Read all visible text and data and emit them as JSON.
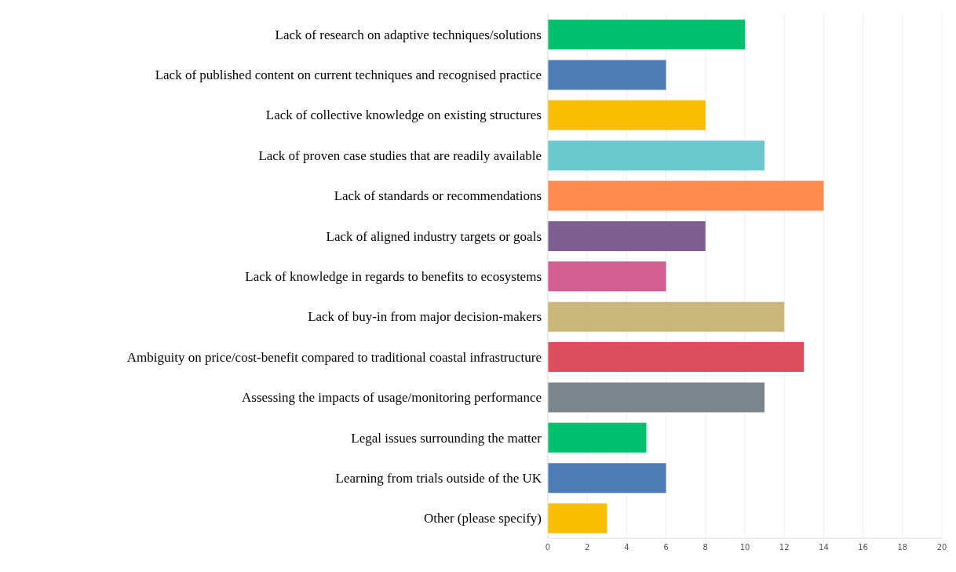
{
  "chart_data": {
    "type": "bar",
    "orientation": "horizontal",
    "categories": [
      "Lack of research on adaptive techniques/solutions",
      "Lack of published content on current techniques and recognised practice",
      "Lack of collective knowledge on existing structures",
      "Lack of proven case studies that are readily available",
      "Lack of standards or recommendations",
      "Lack of aligned industry targets or goals",
      "Lack of knowledge in regards to benefits to ecosystems",
      "Lack of buy-in from major decision-makers",
      "Ambiguity on price/cost-benefit compared to traditional coastal infrastructure",
      "Assessing the impacts of usage/monitoring performance",
      "Legal issues surrounding the matter",
      "Learning from trials outside of the UK",
      "Other (please specify)"
    ],
    "values": [
      10,
      6,
      8,
      11,
      14,
      8,
      6,
      12,
      13,
      11,
      5,
      6,
      3
    ],
    "colors": [
      "#00bf6f",
      "#507cb6",
      "#f9be00",
      "#6bc8cd",
      "#ff8b4f",
      "#7f5f8f",
      "#d25f90",
      "#c9b77c",
      "#dd4e5f",
      "#7d858c",
      "#00bf6f",
      "#507cb6",
      "#f9be00"
    ],
    "xlim": [
      0,
      20
    ],
    "xticks": [
      0,
      2,
      4,
      6,
      8,
      10,
      12,
      14,
      16,
      18,
      20
    ],
    "grid": "x"
  }
}
